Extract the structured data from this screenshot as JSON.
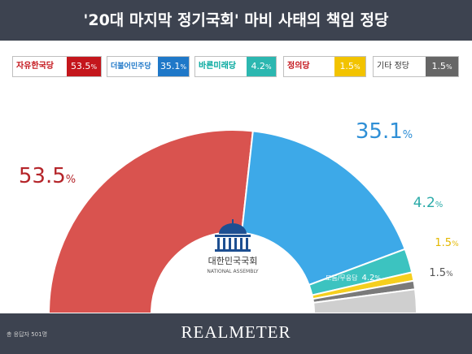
{
  "header": {
    "title": "'20대 마지막 정기국회' 마비 사태의 책임 정당"
  },
  "legend": [
    {
      "name": "자유한국당",
      "value": "53.5",
      "unit": "%",
      "color": "#c4161c",
      "value_color": "#c4161c"
    },
    {
      "name": "더불어민주당",
      "value": "35.1",
      "unit": "%",
      "color": "#1f78c8",
      "value_color": "#1f78c8"
    },
    {
      "name": "바른미래당",
      "value": "4.2",
      "unit": "%",
      "color": "#00a79d",
      "value_color": "#2cb7b0"
    },
    {
      "name": "정의당",
      "value": "1.5",
      "unit": "%",
      "color": "#f2b800",
      "value_color": "#f2c300"
    },
    {
      "name": "기타 정당",
      "value": "1.5",
      "unit": "%",
      "color": "#333333",
      "value_color": "#666666"
    }
  ],
  "chart_data": {
    "type": "pie",
    "style": "semicircle-donut",
    "segments": [
      {
        "name": "자유한국당",
        "value": 53.5,
        "label": "53.5",
        "unit": "%",
        "color": "#d9534f",
        "label_color": "#b5252a"
      },
      {
        "name": "더불어민주당",
        "value": 35.1,
        "label": "35.1",
        "unit": "%",
        "color": "#3da9e8",
        "label_color": "#2f8fd6"
      },
      {
        "name": "바른미래당",
        "value": 4.2,
        "label": "4.2",
        "unit": "%",
        "color": "#3cc3c0",
        "label_color": "#2aaaa8"
      },
      {
        "name": "정의당",
        "value": 1.5,
        "label": "1.5",
        "unit": "%",
        "color": "#f5cf1e",
        "label_color": "#e3b800"
      },
      {
        "name": "기타 정당",
        "value": 1.5,
        "label": "1.5",
        "unit": "%",
        "color": "#7a7a7a",
        "label_color": "#555555"
      },
      {
        "name": "모름/무응답",
        "value": 4.2,
        "label": "4.2",
        "unit": "%",
        "color": "#cfcfcf",
        "label_color": "#ffffff"
      }
    ],
    "center_logo": {
      "text_ko": "대한민국국회",
      "text_en": "NATIONAL ASSEMBLY",
      "icon": "national-assembly-dome-icon"
    }
  },
  "footer": {
    "note": "총 응답자 501명",
    "brand": "REALMETER"
  }
}
